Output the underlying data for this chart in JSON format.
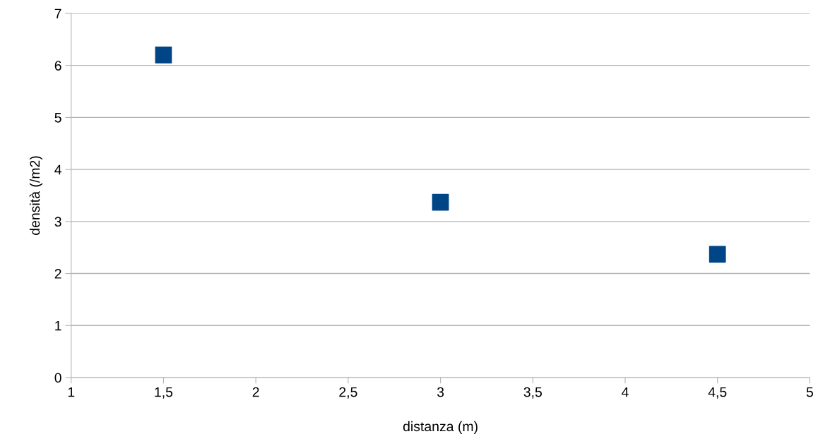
{
  "chart_data": {
    "type": "scatter",
    "xlabel": "distanza (m)",
    "ylabel": "densità (/m2)",
    "x": [
      1.5,
      3,
      4.5
    ],
    "series": [
      {
        "color": "#004586",
        "values": [
          6.2,
          3.37,
          2.37
        ]
      }
    ],
    "marker": "square",
    "grid": "y",
    "legend": false,
    "xlim": [
      1,
      5
    ],
    "xticks": [
      1,
      {
        "value": 1.5,
        "label": "1,5"
      },
      2,
      {
        "value": 2.5,
        "label": "2,5"
      },
      3,
      {
        "value": 3.5,
        "label": "3,5"
      },
      4,
      {
        "value": 4.5,
        "label": "4,5"
      },
      5
    ],
    "ylim": [
      0,
      7
    ],
    "yticks": [
      0,
      1,
      2,
      3,
      4,
      5,
      6,
      7
    ]
  }
}
